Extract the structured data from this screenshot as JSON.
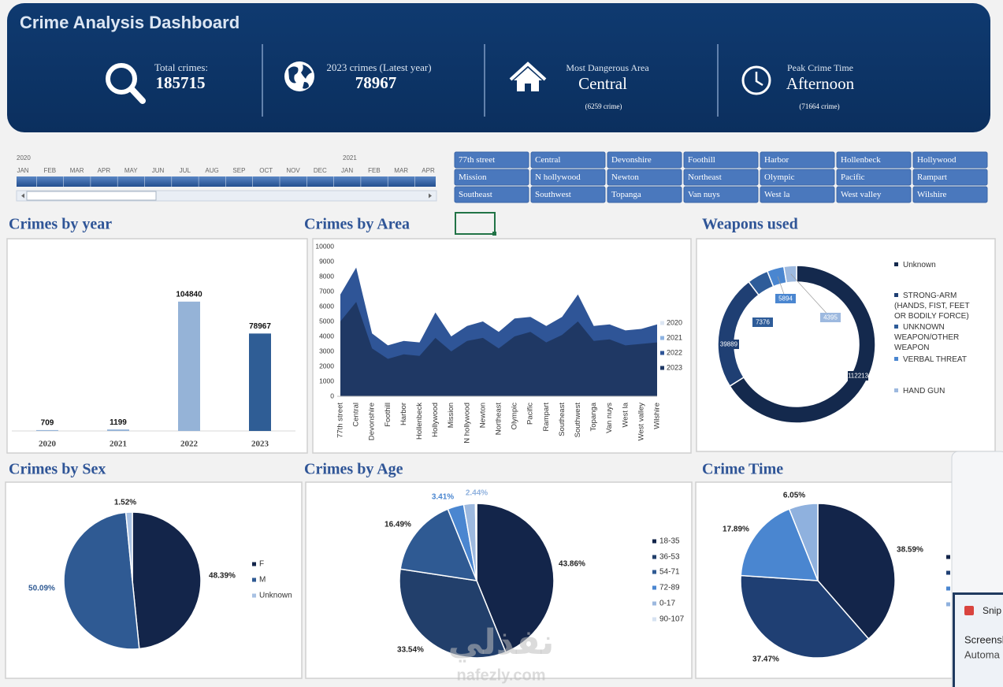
{
  "header": {
    "title": "Crime Analysis Dashboard"
  },
  "kpis": [
    {
      "label": "Total crimes:",
      "value": 185715
    },
    {
      "label": "2023 crimes (Latest year)",
      "value": 78967
    },
    {
      "label": "Most Dangerous Area",
      "value": "Central",
      "note": "(6259 crime)"
    },
    {
      "label": "Peak Crime Time",
      "value": "Afternoon",
      "note": "(71664  crime)"
    }
  ],
  "timeline": {
    "years": [
      "2020",
      "2021"
    ],
    "months": [
      "JAN",
      "FEB",
      "MAR",
      "APR",
      "MAY",
      "JUN",
      "JUL",
      "AUG",
      "SEP",
      "OCT",
      "NOV",
      "DEC",
      "JAN",
      "FEB",
      "MAR",
      "APR"
    ]
  },
  "slicer": {
    "items": [
      "77th street",
      "Central",
      "Devonshire",
      "Foothill",
      "Harbor",
      "Hollenbeck",
      "Hollywood",
      "Mission",
      "N hollywood",
      "Newton",
      "Northeast",
      "Olympic",
      "Pacific",
      "Rampart",
      "Southeast",
      "Southwest",
      "Topanga",
      "Van nuys",
      "West la",
      "West valley",
      "Wilshire"
    ]
  },
  "chart_data": [
    {
      "type": "bar",
      "title": "Crimes by year",
      "categories": [
        "2020",
        "2021",
        "2022",
        "2023"
      ],
      "values": [
        709,
        1199,
        104840,
        78967
      ],
      "colors": [
        "#95b3d7",
        "#95b3d7",
        "#95b3d7",
        "#2f5d95"
      ]
    },
    {
      "type": "area",
      "title": "Crimes by Area",
      "categories": [
        "77th street",
        "Central",
        "Devonshire",
        "Foothill",
        "Harbor",
        "Hollenbeck",
        "Hollywood",
        "Mission",
        "N hollywood",
        "Newton",
        "Northeast",
        "Olympic",
        "Pacific",
        "Rampart",
        "Southeast",
        "Southwest",
        "Topanga",
        "Van nuys",
        "West la",
        "West valley",
        "Wilshire"
      ],
      "ylim": [
        0,
        10000
      ],
      "yticks": [
        0,
        1000,
        2000,
        3000,
        4000,
        5000,
        6000,
        7000,
        8000,
        9000,
        10000
      ],
      "grid": false,
      "series": [
        {
          "name": "2020",
          "color": "#dce6f2",
          "values": [
            40,
            45,
            25,
            25,
            30,
            25,
            40,
            30,
            35,
            35,
            30,
            35,
            40,
            30,
            35,
            45,
            30,
            35,
            30,
            30,
            35
          ]
        },
        {
          "name": "2021",
          "color": "#8db3e2",
          "values": [
            70,
            80,
            45,
            40,
            45,
            45,
            65,
            50,
            55,
            60,
            50,
            60,
            65,
            55,
            60,
            75,
            55,
            55,
            50,
            50,
            55
          ]
        },
        {
          "name": "2022",
          "color": "#2f5597",
          "values": [
            6800,
            8600,
            4200,
            3400,
            3700,
            3600,
            5600,
            4000,
            4700,
            5000,
            4300,
            5200,
            5300,
            4700,
            5300,
            6800,
            4700,
            4800,
            4400,
            4500,
            4800
          ]
        },
        {
          "name": "2023",
          "color": "#1f3864",
          "values": [
            5000,
            6300,
            3200,
            2500,
            2800,
            2700,
            3900,
            3000,
            3700,
            3900,
            3200,
            4000,
            4300,
            3600,
            4100,
            5000,
            3700,
            3800,
            3400,
            3500,
            3600
          ]
        }
      ]
    },
    {
      "type": "doughnut",
      "title": "Weapons used",
      "categories": [
        "Unknown",
        "STRONG-ARM (HANDS, FIST, FEET OR BODILY FORCE)",
        "UNKNOWN WEAPON/OTHER WEAPON",
        "VERBAL THREAT",
        "HAND GUN"
      ],
      "values": [
        112213,
        39889,
        7376,
        5894,
        4395
      ],
      "colors": [
        "#14294d",
        "#1f3f73",
        "#2e5c99",
        "#4a86d0",
        "#9db9df"
      ]
    },
    {
      "type": "pie",
      "title": "Crimes by Sex",
      "categories": [
        "F",
        "M",
        "Unknown"
      ],
      "values": [
        48.39,
        50.09,
        1.52
      ],
      "value_labels": [
        "48.39%",
        "50.09%",
        "1.52%"
      ],
      "colors": [
        "#13254a",
        "#2f5a93",
        "#a8c1e3"
      ]
    },
    {
      "type": "pie",
      "title": "Crimes by Age",
      "categories": [
        "18-35",
        "36-53",
        "54-71",
        "72-89",
        "0-17",
        "90-107"
      ],
      "values": [
        43.86,
        33.54,
        16.49,
        3.41,
        2.44,
        0.26
      ],
      "value_labels": [
        "43.86%",
        "33.54%",
        "16.49%",
        "3.41%",
        "2.44%",
        null
      ],
      "colors": [
        "#13254a",
        "#223f6b",
        "#2f5a93",
        "#4a86d0",
        "#9db9df",
        "#d6e2f1"
      ]
    },
    {
      "type": "pie",
      "title": "Crime Time",
      "values": [
        38.59,
        37.47,
        17.89,
        6.05
      ],
      "value_labels": [
        "38.59%",
        "37.47%",
        "17.89%",
        "6.05%"
      ],
      "colors": [
        "#13254a",
        "#1f3f73",
        "#4a86d0",
        "#8fb1de"
      ]
    }
  ],
  "watermark": {
    "arabic": "نفذلي",
    "latin": "nafezly.com"
  },
  "notification": {
    "title": "Snip",
    "line1": "Screensh",
    "line2": "Automa"
  }
}
